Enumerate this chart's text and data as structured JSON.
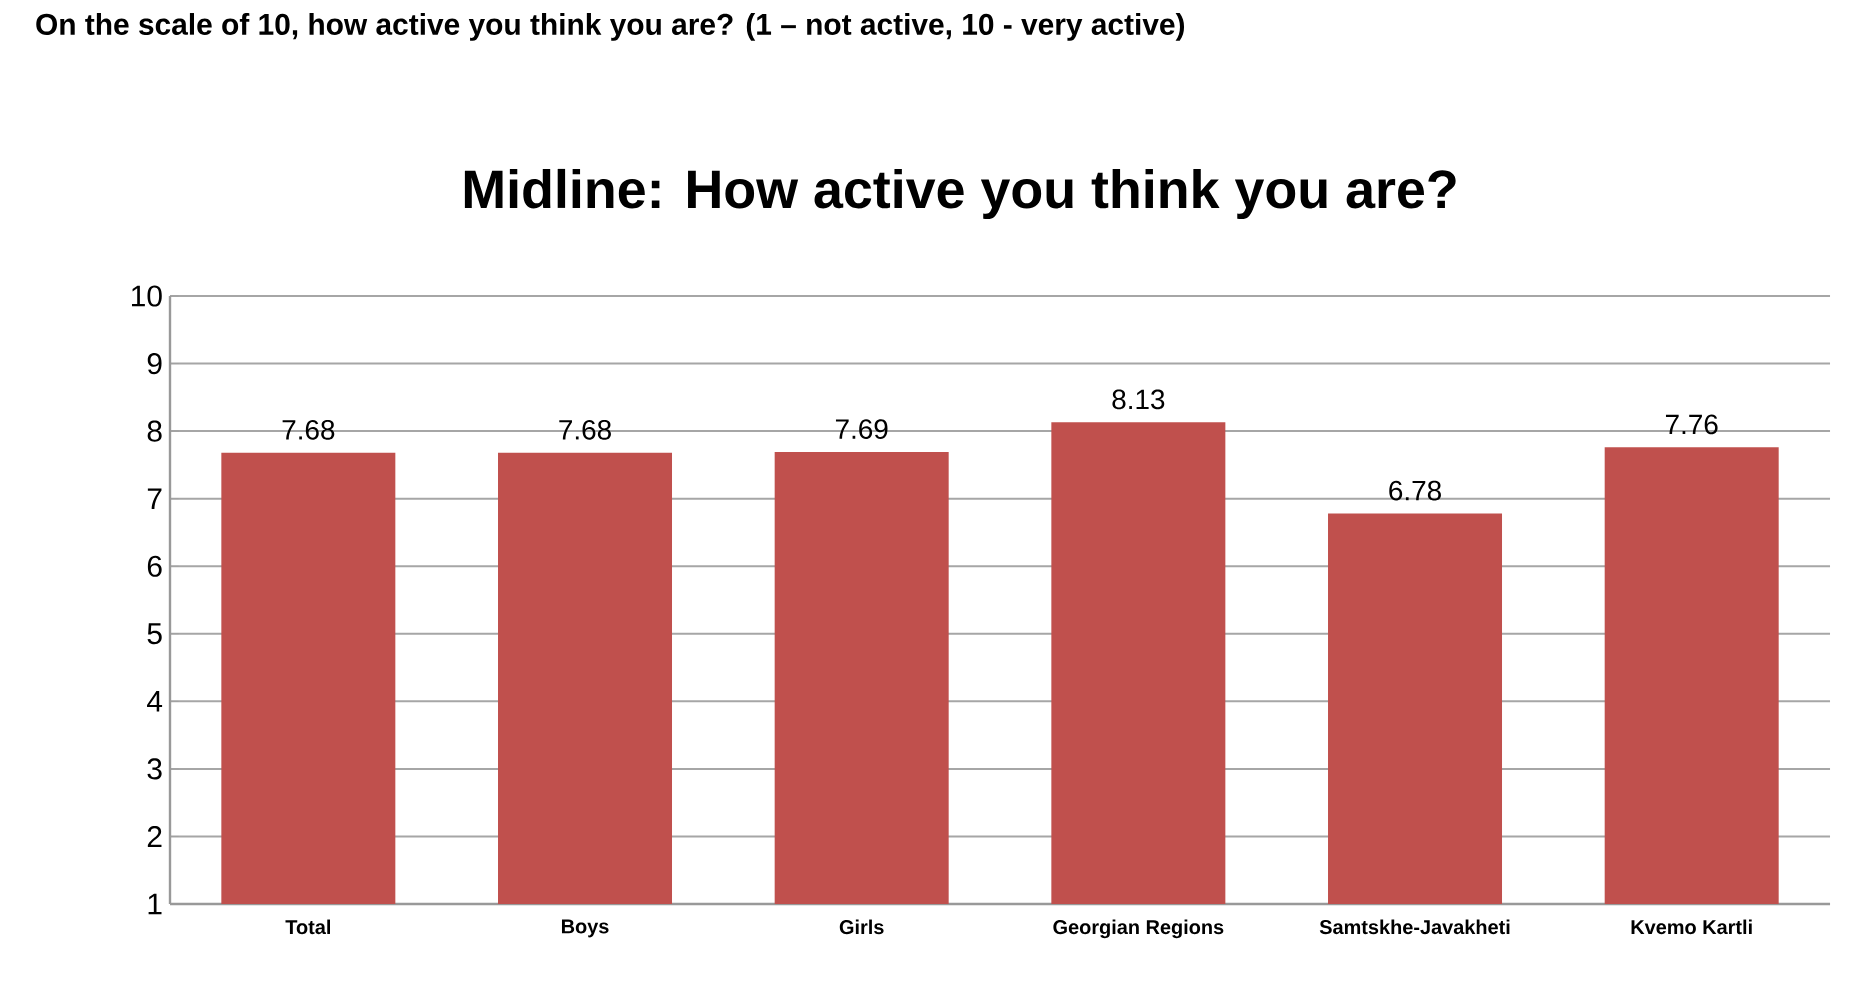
{
  "chart_data": {
    "type": "bar",
    "subtitle": "On the scale of 10, how active you think you are? (1 – not active, 10  - very active)",
    "title": "Midline: How active you think you are?",
    "categories": [
      "Total",
      "Boys",
      "Girls",
      "Georgian Regions",
      "Samtskhe-Javakheti",
      "Kvemo Kartli"
    ],
    "values": [
      7.68,
      7.68,
      7.69,
      8.13,
      6.78,
      7.76
    ],
    "color": "#c0504d",
    "ylim": [
      1,
      10
    ],
    "yticks": [
      1,
      2,
      3,
      4,
      5,
      6,
      7,
      8,
      9,
      10
    ],
    "grid": "y",
    "data_labels": true
  }
}
